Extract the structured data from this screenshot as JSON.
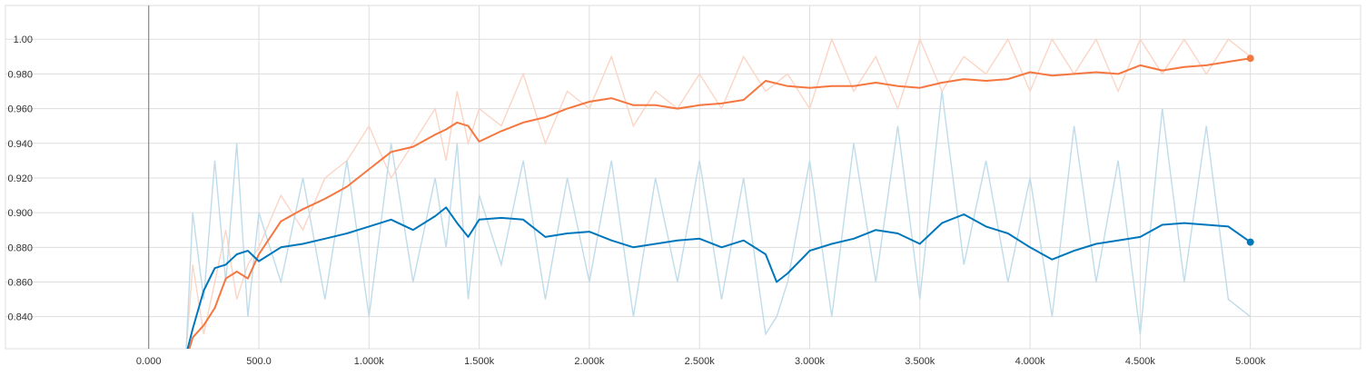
{
  "chart_data": {
    "type": "line",
    "title": "",
    "xlabel": "",
    "ylabel": "",
    "xlim": [
      -650,
      5500
    ],
    "ylim": [
      0.8215,
      1.0195
    ],
    "grid": true,
    "legend": "none",
    "x_ticks": [
      {
        "value": 0,
        "label": "0.000"
      },
      {
        "value": 500,
        "label": "500.0"
      },
      {
        "value": 1000,
        "label": "1.000k"
      },
      {
        "value": 1500,
        "label": "1.500k"
      },
      {
        "value": 2000,
        "label": "2.000k"
      },
      {
        "value": 2500,
        "label": "2.500k"
      },
      {
        "value": 3000,
        "label": "3.000k"
      },
      {
        "value": 3500,
        "label": "3.500k"
      },
      {
        "value": 4000,
        "label": "4.000k"
      },
      {
        "value": 4500,
        "label": "4.500k"
      },
      {
        "value": 5000,
        "label": "5.000k"
      }
    ],
    "y_ticks": [
      {
        "value": 0.84,
        "label": "0.840"
      },
      {
        "value": 0.86,
        "label": "0.860"
      },
      {
        "value": 0.88,
        "label": "0.880"
      },
      {
        "value": 0.9,
        "label": "0.900"
      },
      {
        "value": 0.92,
        "label": "0.920"
      },
      {
        "value": 0.94,
        "label": "0.940"
      },
      {
        "value": 0.96,
        "label": "0.960"
      },
      {
        "value": 0.98,
        "label": "0.980"
      },
      {
        "value": 1.0,
        "label": "1.00"
      }
    ],
    "series": [
      {
        "color": "#f5773f",
        "raw_color": "#fbd5c5",
        "x": [
          170,
          200,
          250,
          300,
          350,
          400,
          450,
          500,
          600,
          700,
          800,
          900,
          1000,
          1100,
          1200,
          1300,
          1350,
          1400,
          1450,
          1500,
          1600,
          1700,
          1800,
          1900,
          2000,
          2100,
          2200,
          2300,
          2400,
          2500,
          2600,
          2700,
          2800,
          2900,
          3000,
          3100,
          3200,
          3300,
          3400,
          3500,
          3600,
          3700,
          3800,
          3900,
          4000,
          4100,
          4200,
          4300,
          4400,
          4500,
          4600,
          4700,
          4800,
          4900,
          5000
        ],
        "smoothed": [
          0.815,
          0.828,
          0.835,
          0.845,
          0.862,
          0.866,
          0.862,
          0.876,
          0.895,
          0.902,
          0.908,
          0.915,
          0.925,
          0.935,
          0.938,
          0.945,
          0.948,
          0.952,
          0.95,
          0.941,
          0.947,
          0.952,
          0.955,
          0.96,
          0.964,
          0.966,
          0.962,
          0.962,
          0.96,
          0.962,
          0.963,
          0.965,
          0.976,
          0.973,
          0.972,
          0.973,
          0.973,
          0.975,
          0.973,
          0.972,
          0.975,
          0.977,
          0.976,
          0.977,
          0.981,
          0.979,
          0.98,
          0.981,
          0.98,
          0.985,
          0.982,
          0.984,
          0.985,
          0.987,
          0.989
        ],
        "raw": [
          0.82,
          0.87,
          0.83,
          0.86,
          0.89,
          0.85,
          0.87,
          0.88,
          0.91,
          0.89,
          0.92,
          0.93,
          0.95,
          0.92,
          0.94,
          0.96,
          0.93,
          0.97,
          0.94,
          0.96,
          0.95,
          0.98,
          0.94,
          0.97,
          0.96,
          0.99,
          0.95,
          0.97,
          0.96,
          0.98,
          0.96,
          0.99,
          0.97,
          0.98,
          0.96,
          1.0,
          0.97,
          0.99,
          0.96,
          1.0,
          0.97,
          0.99,
          0.98,
          1.0,
          0.97,
          1.0,
          0.98,
          1.0,
          0.97,
          1.0,
          0.98,
          1.0,
          0.98,
          1.0,
          0.99
        ]
      },
      {
        "color": "#0077bb",
        "raw_color": "#bfdcea",
        "x": [
          170,
          200,
          250,
          300,
          350,
          400,
          450,
          500,
          600,
          700,
          800,
          900,
          1000,
          1100,
          1200,
          1300,
          1350,
          1400,
          1450,
          1500,
          1600,
          1700,
          1800,
          1900,
          2000,
          2100,
          2200,
          2300,
          2400,
          2500,
          2600,
          2700,
          2800,
          2850,
          2900,
          3000,
          3100,
          3200,
          3300,
          3400,
          3500,
          3600,
          3700,
          3800,
          3900,
          4000,
          4100,
          4200,
          4300,
          4400,
          4500,
          4600,
          4700,
          4800,
          4900,
          5000
        ],
        "smoothed": [
          0.818,
          0.833,
          0.855,
          0.868,
          0.87,
          0.876,
          0.878,
          0.872,
          0.88,
          0.882,
          0.885,
          0.888,
          0.892,
          0.896,
          0.89,
          0.898,
          0.903,
          0.894,
          0.886,
          0.896,
          0.897,
          0.896,
          0.886,
          0.888,
          0.889,
          0.884,
          0.88,
          0.882,
          0.884,
          0.885,
          0.88,
          0.884,
          0.876,
          0.86,
          0.865,
          0.878,
          0.882,
          0.885,
          0.89,
          0.888,
          0.882,
          0.894,
          0.899,
          0.892,
          0.888,
          0.88,
          0.873,
          0.878,
          0.882,
          0.884,
          0.886,
          0.893,
          0.894,
          0.893,
          0.892,
          0.883
        ],
        "raw": [
          0.82,
          0.9,
          0.85,
          0.93,
          0.86,
          0.94,
          0.84,
          0.9,
          0.86,
          0.92,
          0.85,
          0.93,
          0.84,
          0.94,
          0.86,
          0.92,
          0.88,
          0.94,
          0.85,
          0.91,
          0.87,
          0.93,
          0.85,
          0.92,
          0.86,
          0.93,
          0.84,
          0.92,
          0.86,
          0.93,
          0.85,
          0.92,
          0.83,
          0.84,
          0.86,
          0.93,
          0.84,
          0.94,
          0.86,
          0.95,
          0.85,
          0.97,
          0.87,
          0.93,
          0.86,
          0.92,
          0.84,
          0.95,
          0.86,
          0.93,
          0.83,
          0.96,
          0.86,
          0.95,
          0.85,
          0.84
        ]
      }
    ]
  }
}
